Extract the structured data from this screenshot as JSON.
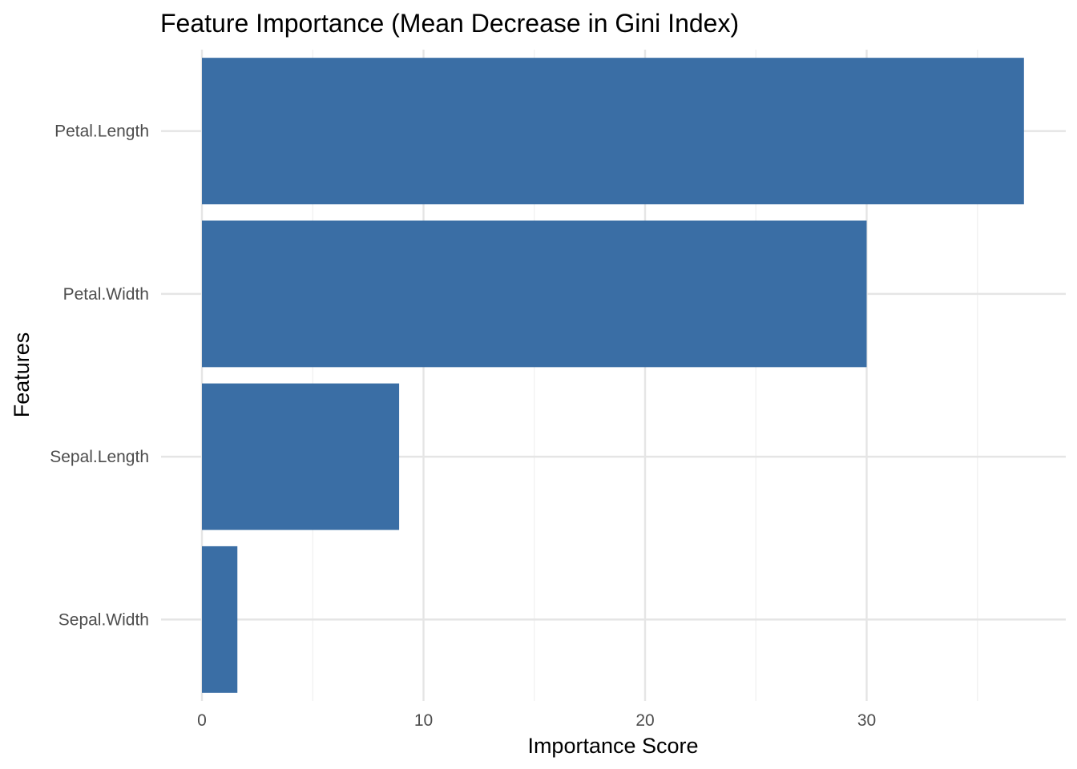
{
  "chart_data": {
    "type": "bar",
    "orientation": "horizontal",
    "title": "Feature Importance (Mean Decrease in Gini Index)",
    "xlabel": "Importance Score",
    "ylabel": "Features",
    "categories": [
      "Petal.Length",
      "Petal.Width",
      "Sepal.Length",
      "Sepal.Width"
    ],
    "values": [
      37.1,
      30.0,
      8.9,
      1.6
    ],
    "xlim": [
      0,
      38
    ],
    "xticks": [
      0,
      10,
      20,
      30
    ],
    "xticks_minor": [
      5,
      15,
      25,
      35
    ],
    "bar_color": "#3A6EA5",
    "grid_major_color": "#E5E5E5",
    "grid_minor_color": "#F0F0F0",
    "grid": true,
    "legend": "none"
  }
}
